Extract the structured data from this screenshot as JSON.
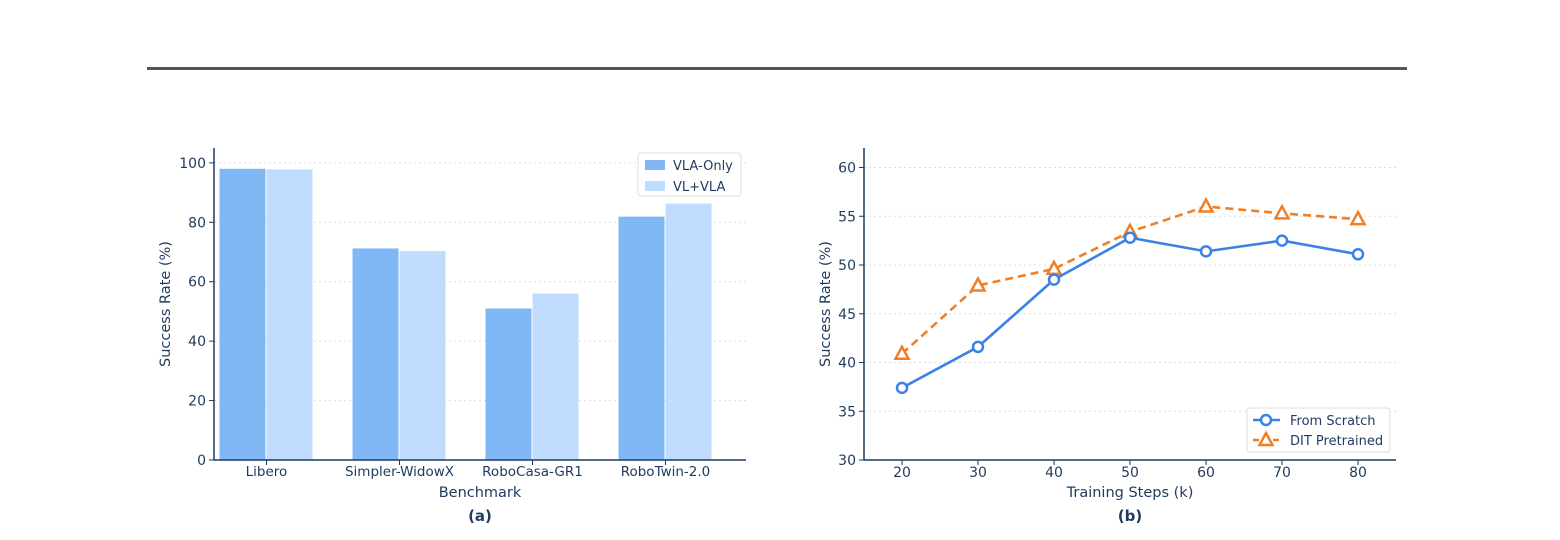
{
  "colors": {
    "vla_only": "#7fb8f5",
    "vl_vla": "#bfdbfd",
    "from_scratch": "#3b82e8",
    "dit_pretrained": "#f07f27",
    "axis": "#1f3a5f",
    "grid": "#d9dde3",
    "rule": "#555555"
  },
  "chart_data": [
    {
      "type": "bar",
      "panel_label": "(a)",
      "xlabel": "Benchmark",
      "ylabel": "Success Rate (%)",
      "ylim": [
        0,
        105
      ],
      "yticks": [
        0,
        20,
        40,
        60,
        80,
        100
      ],
      "categories": [
        "Libero",
        "Simpler-WidowX",
        "RoboCasa-GR1",
        "RoboTwin-2.0"
      ],
      "series": [
        {
          "name": "VLA-Only",
          "values": [
            98.0,
            71.2,
            51.0,
            81.9
          ]
        },
        {
          "name": "VL+VLA",
          "values": [
            97.8,
            70.3,
            56.0,
            86.3
          ]
        }
      ],
      "grid": "horizontal dotted",
      "legend": "top-right"
    },
    {
      "type": "line",
      "panel_label": "(b)",
      "xlabel": "Training Steps (k)",
      "ylabel": "Success Rate (%)",
      "x": [
        20,
        30,
        40,
        50,
        60,
        70,
        80
      ],
      "xlim": [
        15,
        85
      ],
      "ylim": [
        30,
        62
      ],
      "yticks": [
        30,
        35,
        40,
        45,
        50,
        55,
        60
      ],
      "series": [
        {
          "name": "From Scratch",
          "values": [
            37.4,
            41.6,
            48.5,
            52.8,
            51.4,
            52.5,
            51.1
          ],
          "marker": "circle",
          "line": "solid"
        },
        {
          "name": "DIT Pretrained",
          "values": [
            40.9,
            47.9,
            49.6,
            53.4,
            56.0,
            55.3,
            54.7
          ],
          "marker": "triangle",
          "line": "dashed"
        }
      ],
      "grid": "horizontal dotted",
      "legend": "bottom-right"
    }
  ]
}
